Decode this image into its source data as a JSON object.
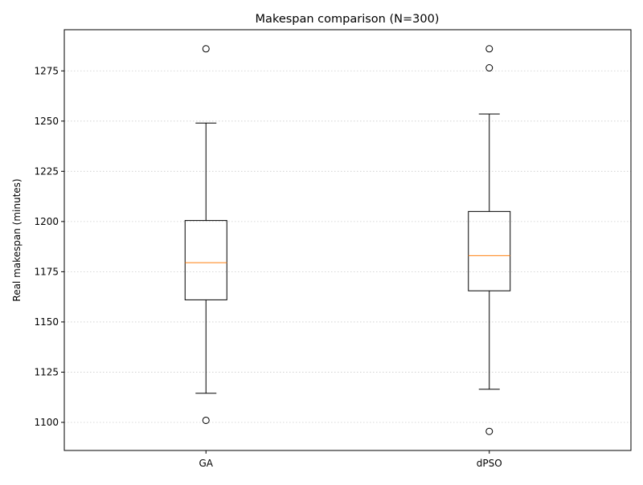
{
  "chart_data": {
    "type": "box",
    "title": "Makespan comparison (N=300)",
    "xlabel": "",
    "ylabel": "Real makespan (minutes)",
    "categories": [
      "GA",
      "dPSO"
    ],
    "boxes": [
      {
        "name": "GA",
        "whisker_low": 1114.5,
        "q1": 1161.0,
        "median": 1179.5,
        "q3": 1200.5,
        "whisker_high": 1249.0,
        "outliers": [
          1101.0,
          1286.0
        ]
      },
      {
        "name": "dPSO",
        "whisker_low": 1116.5,
        "q1": 1165.5,
        "median": 1183.0,
        "q3": 1205.0,
        "whisker_high": 1253.5,
        "outliers": [
          1095.5,
          1276.5,
          1286.0
        ]
      }
    ],
    "ylim": [
      1086,
      1295.5
    ],
    "yticks": [
      1100,
      1125,
      1150,
      1175,
      1200,
      1225,
      1250,
      1275
    ],
    "grid": "y-dotted",
    "colors": {
      "box": "#000000",
      "median": "#ff7f0e",
      "grid": "#cccccc"
    }
  }
}
